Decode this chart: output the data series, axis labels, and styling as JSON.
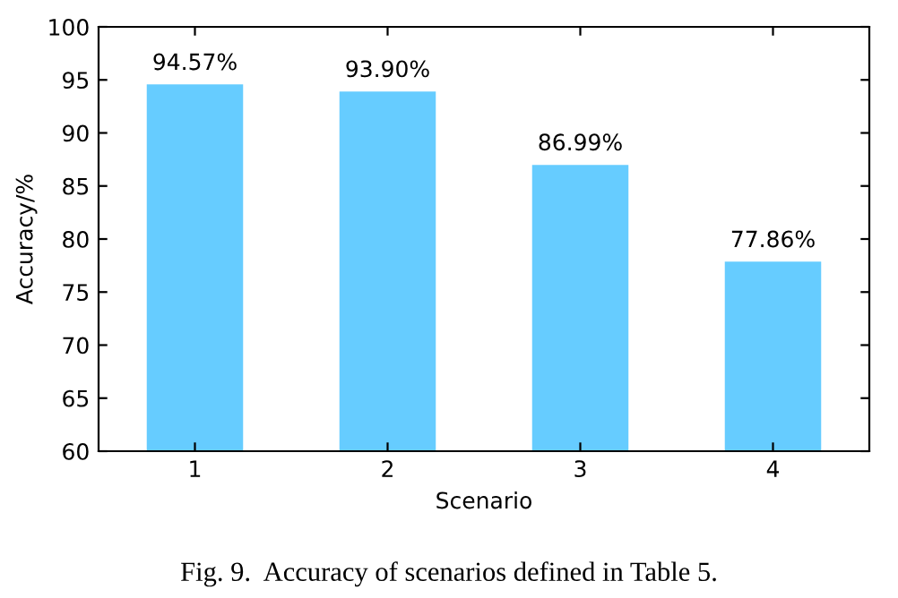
{
  "chart_data": {
    "type": "bar",
    "xlabel": "Scenario",
    "ylabel": "Accuracy/%",
    "categories": [
      "1",
      "2",
      "3",
      "4"
    ],
    "values": [
      94.57,
      93.9,
      86.99,
      77.86
    ],
    "value_labels": [
      "94.57%",
      "93.90%",
      "86.99%",
      "77.86%"
    ],
    "color": "#66ccff",
    "ylim": [
      60,
      100
    ],
    "yticks": [
      60,
      65,
      70,
      75,
      80,
      85,
      90,
      95,
      100
    ],
    "grid": false,
    "legend": false,
    "annotations": [
      "Fig. 9.  Accuracy of scenarios defined in Table 5."
    ]
  }
}
